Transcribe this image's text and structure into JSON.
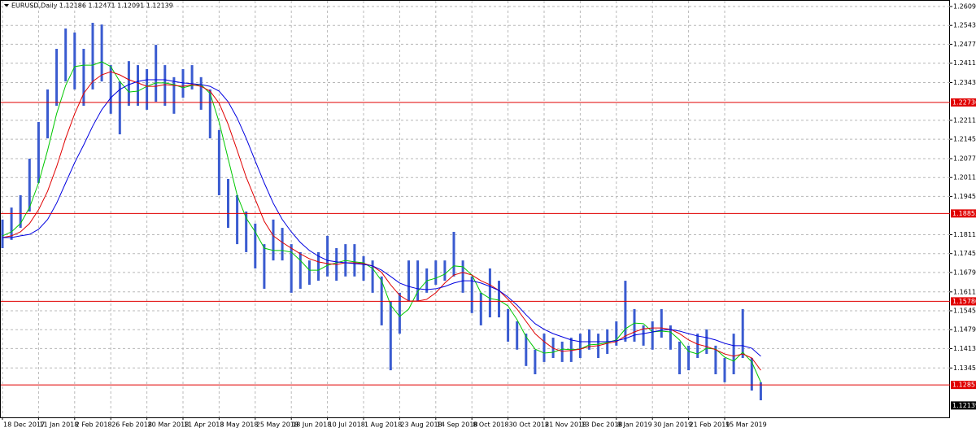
{
  "chart_data": {
    "type": "ohlc",
    "title": "EURUSD,Daily  1.12186 1.12471 1.12091 1.12139",
    "bar_color": "#3a5bd0",
    "categories": [
      "18 Dec 2017",
      null,
      null,
      null,
      "11 Jan 2018",
      null,
      null,
      null,
      "2 Feb 2018",
      null,
      null,
      null,
      "26 Feb 2018",
      null,
      null,
      null,
      "20 Mar 2018",
      null,
      null,
      null,
      "11 Apr 2018",
      null,
      null,
      null,
      "3 May 2018",
      null,
      null,
      null,
      "25 May 2018",
      null,
      null,
      null,
      "18 Jun 2018",
      null,
      null,
      null,
      "10 Jul 2018",
      null,
      null,
      null,
      "1 Aug 2018",
      null,
      null,
      null,
      "23 Aug 2018",
      null,
      null,
      null,
      "14 Sep 2018",
      null,
      null,
      null,
      "8 Oct 2018",
      null,
      null,
      null,
      "30 Oct 2018",
      null,
      null,
      null,
      "21 Nov 2018",
      null,
      null,
      null,
      "13 Dec 2018",
      null,
      null,
      null,
      "8 Jan 2019",
      null,
      null,
      null,
      "30 Jan 2019",
      null,
      null,
      null,
      "21 Feb 2019",
      null,
      null,
      null,
      "15 Mar 2019",
      null,
      null,
      null,
      null
    ],
    "high": [
      1.1864,
      1.1906,
      1.1949,
      1.2077,
      1.2205,
      1.2319,
      1.2461,
      1.2532,
      1.2518,
      1.2461,
      1.2552,
      1.2546,
      1.2404,
      1.2347,
      1.2418,
      1.2404,
      1.239,
      1.2475,
      1.2404,
      1.2362,
      1.239,
      1.2404,
      1.2362,
      1.2319,
      1.2177,
      1.2006,
      1.1949,
      1.1892,
      1.185,
      1.1778,
      1.1864,
      1.1835,
      1.1778,
      1.175,
      1.1721,
      1.175,
      1.1807,
      1.1764,
      1.1778,
      1.1778,
      1.1736,
      1.1721,
      1.1665,
      1.1579,
      1.1608,
      1.1721,
      1.1721,
      1.1693,
      1.1721,
      1.1721,
      1.1821,
      1.1721,
      1.1665,
      1.1608,
      1.1693,
      1.165,
      1.1551,
      1.1508,
      1.1465,
      1.1409,
      1.1465,
      1.1451,
      1.1437,
      1.1451,
      1.1465,
      1.148,
      1.1465,
      1.148,
      1.1508,
      1.165,
      1.1551,
      1.1494,
      1.1508,
      1.1551,
      1.1494,
      1.1437,
      1.1423,
      1.1465,
      1.148,
      1.1423,
      1.138,
      1.1465,
      1.1551,
      1.138,
      1.1295
    ],
    "low": [
      1.1764,
      1.1793,
      1.1835,
      1.1892,
      1.1992,
      1.2148,
      1.2262,
      1.2347,
      1.2319,
      1.2262,
      1.2319,
      1.2347,
      1.2234,
      1.2162,
      1.2262,
      1.2262,
      1.2248,
      1.2276,
      1.2262,
      1.2234,
      1.229,
      1.2319,
      1.2248,
      1.2148,
      1.1949,
      1.1835,
      1.1778,
      1.175,
      1.1693,
      1.1622,
      1.1721,
      1.1721,
      1.1608,
      1.1622,
      1.1636,
      1.165,
      1.1665,
      1.165,
      1.1665,
      1.1665,
      1.165,
      1.1608,
      1.1494,
      1.1337,
      1.1465,
      1.1579,
      1.1579,
      1.1608,
      1.1636,
      1.165,
      1.1665,
      1.1608,
      1.1537,
      1.1494,
      1.1522,
      1.1522,
      1.1437,
      1.1409,
      1.1352,
      1.1323,
      1.1366,
      1.138,
      1.1366,
      1.1366,
      1.138,
      1.1409,
      1.138,
      1.1394,
      1.1423,
      1.1437,
      1.1437,
      1.1423,
      1.1409,
      1.1451,
      1.1409,
      1.1323,
      1.1337,
      1.138,
      1.1394,
      1.1323,
      1.1295,
      1.1323,
      1.138,
      1.1266,
      1.1232
    ],
    "moving_averages": [
      {
        "color": "#00c800",
        "values": [
          1.1807,
          1.1821,
          1.185,
          1.1906,
          1.1992,
          1.2106,
          1.2234,
          1.2333,
          1.2399,
          1.2404,
          1.2404,
          1.2416,
          1.2399,
          1.2347,
          1.231,
          1.2313,
          1.233,
          1.2342,
          1.2342,
          1.2336,
          1.2325,
          1.2333,
          1.2336,
          1.2305,
          1.2205,
          1.2077,
          1.1949,
          1.1869,
          1.1821,
          1.1764,
          1.1756,
          1.1756,
          1.175,
          1.1721,
          1.1687,
          1.1687,
          1.1704,
          1.1713,
          1.1721,
          1.1716,
          1.1713,
          1.1693,
          1.165,
          1.1565,
          1.1525,
          1.1551,
          1.1613,
          1.165,
          1.1659,
          1.1673,
          1.1702,
          1.1699,
          1.167,
          1.1608,
          1.1588,
          1.1582,
          1.1562,
          1.1514,
          1.1454,
          1.1411,
          1.1397,
          1.14,
          1.1411,
          1.1409,
          1.1411,
          1.1426,
          1.1428,
          1.1434,
          1.1443,
          1.1482,
          1.1502,
          1.15,
          1.1471,
          1.1474,
          1.1471,
          1.1443,
          1.1403,
          1.1394,
          1.1414,
          1.1411,
          1.1383,
          1.1369,
          1.14,
          1.1366,
          1.1295
        ]
      },
      {
        "color": "#e00000",
        "values": [
          1.1801,
          1.1807,
          1.1821,
          1.185,
          1.1898,
          1.1963,
          1.2049,
          1.2148,
          1.2234,
          1.2305,
          1.2347,
          1.237,
          1.2381,
          1.237,
          1.2353,
          1.2342,
          1.233,
          1.233,
          1.2336,
          1.2333,
          1.233,
          1.2336,
          1.233,
          1.2313,
          1.2271,
          1.2197,
          1.2106,
          1.2012,
          1.1935,
          1.1858,
          1.1807,
          1.1784,
          1.1764,
          1.1744,
          1.1727,
          1.1716,
          1.171,
          1.1707,
          1.1713,
          1.1713,
          1.171,
          1.1702,
          1.1679,
          1.1636,
          1.1599,
          1.1579,
          1.1579,
          1.1585,
          1.1608,
          1.1642,
          1.167,
          1.1679,
          1.167,
          1.165,
          1.1636,
          1.1616,
          1.1585,
          1.1551,
          1.1508,
          1.1465,
          1.1437,
          1.1414,
          1.1403,
          1.1406,
          1.1411,
          1.142,
          1.1423,
          1.1431,
          1.1437,
          1.1457,
          1.1471,
          1.1482,
          1.1485,
          1.1485,
          1.148,
          1.1465,
          1.1443,
          1.1428,
          1.142,
          1.1409,
          1.1394,
          1.1386,
          1.1394,
          1.138,
          1.1337
        ]
      },
      {
        "color": "#0000e0",
        "values": [
          1.1801,
          1.1801,
          1.1807,
          1.1812,
          1.183,
          1.1864,
          1.1921,
          1.1992,
          1.2063,
          1.2125,
          1.2191,
          1.2248,
          1.229,
          1.2319,
          1.2336,
          1.2347,
          1.2353,
          1.2353,
          1.2353,
          1.2347,
          1.2342,
          1.2339,
          1.2336,
          1.233,
          1.2313,
          1.2276,
          1.2219,
          1.2148,
          1.2069,
          1.1992,
          1.1921,
          1.1864,
          1.1821,
          1.1784,
          1.1756,
          1.1736,
          1.1721,
          1.1716,
          1.1713,
          1.171,
          1.1707,
          1.1702,
          1.1687,
          1.1665,
          1.1642,
          1.163,
          1.1622,
          1.1619,
          1.1622,
          1.163,
          1.1642,
          1.165,
          1.165,
          1.1642,
          1.163,
          1.1616,
          1.1593,
          1.1565,
          1.1531,
          1.15,
          1.148,
          1.1465,
          1.1454,
          1.1443,
          1.1437,
          1.1437,
          1.1437,
          1.1437,
          1.144,
          1.1448,
          1.146,
          1.1465,
          1.1471,
          1.1477,
          1.148,
          1.1474,
          1.1465,
          1.1457,
          1.1451,
          1.1443,
          1.1431,
          1.1423,
          1.1423,
          1.1414,
          1.1386
        ]
      }
    ],
    "levels": [
      1.22736,
      1.18853,
      {
        "value": 1.1578,
        "label": "1.15780"
      },
      1.12857
    ],
    "level_color": "#e00000",
    "current_price": 1.12139,
    "ylim": [
      1.11723,
      1.26318
    ],
    "yticks": [
      {
        "value": 1.2609,
        "label": "1.26090"
      },
      {
        "value": 1.2543,
        "label": "1.25430"
      },
      {
        "value": 1.2477,
        "label": "1.24770"
      },
      {
        "value": 1.2411,
        "label": "1.24110"
      },
      {
        "value": 1.2343,
        "label": "1.23430"
      },
      {
        "value": 1.2211,
        "label": "1.22110"
      },
      {
        "value": 1.2145,
        "label": "1.21450"
      },
      {
        "value": 1.2077,
        "label": "1.20770"
      },
      {
        "value": 1.2011,
        "label": "1.20110"
      },
      {
        "value": 1.1945,
        "label": "1.19450"
      },
      {
        "value": 1.1811,
        "label": "1.18110"
      },
      {
        "value": 1.1745,
        "label": "1.17450"
      },
      {
        "value": 1.1679,
        "label": "1.16790"
      },
      {
        "value": 1.1611,
        "label": "1.16110"
      },
      {
        "value": 1.1545,
        "label": "1.15450"
      },
      {
        "value": 1.1479,
        "label": "1.14790"
      },
      {
        "value": 1.1413,
        "label": "1.14130"
      },
      {
        "value": 1.1345,
        "label": "1.13450"
      }
    ],
    "grid": true
  }
}
